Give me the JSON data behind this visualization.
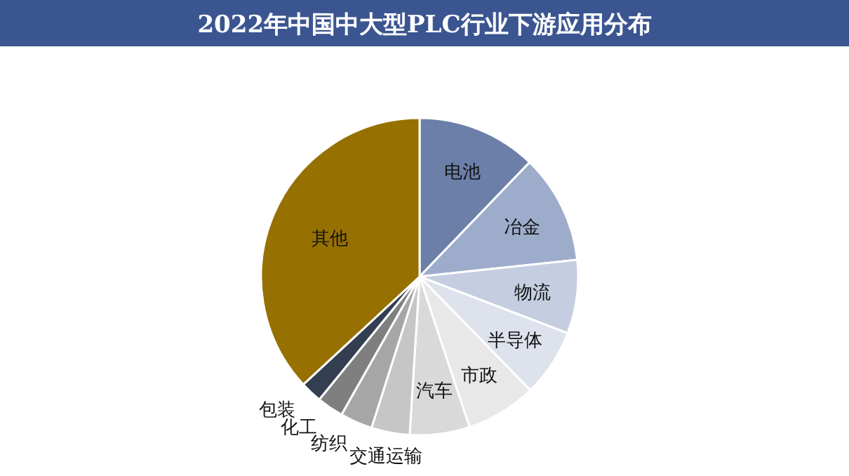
{
  "chart_data": {
    "type": "pie",
    "title": "2022年中国中大型PLC行业下游应用分布",
    "categories": [
      "电池",
      "冶金",
      "物流",
      "半导体",
      "市政",
      "汽车",
      "交通运输",
      "纺织",
      "化工",
      "包装",
      "其他"
    ],
    "values": [
      12.2,
      11.1,
      7.5,
      6.9,
      7.2,
      6.1,
      3.9,
      3.3,
      2.7,
      2.2,
      36.9
    ],
    "colors": [
      "#6b7fa8",
      "#9eaccb",
      "#c5cde0",
      "#dde2ec",
      "#e8e8e8",
      "#d9d9d9",
      "#c6c6c6",
      "#a6a6a6",
      "#7f7f7f",
      "#333f50",
      "#967000"
    ]
  }
}
